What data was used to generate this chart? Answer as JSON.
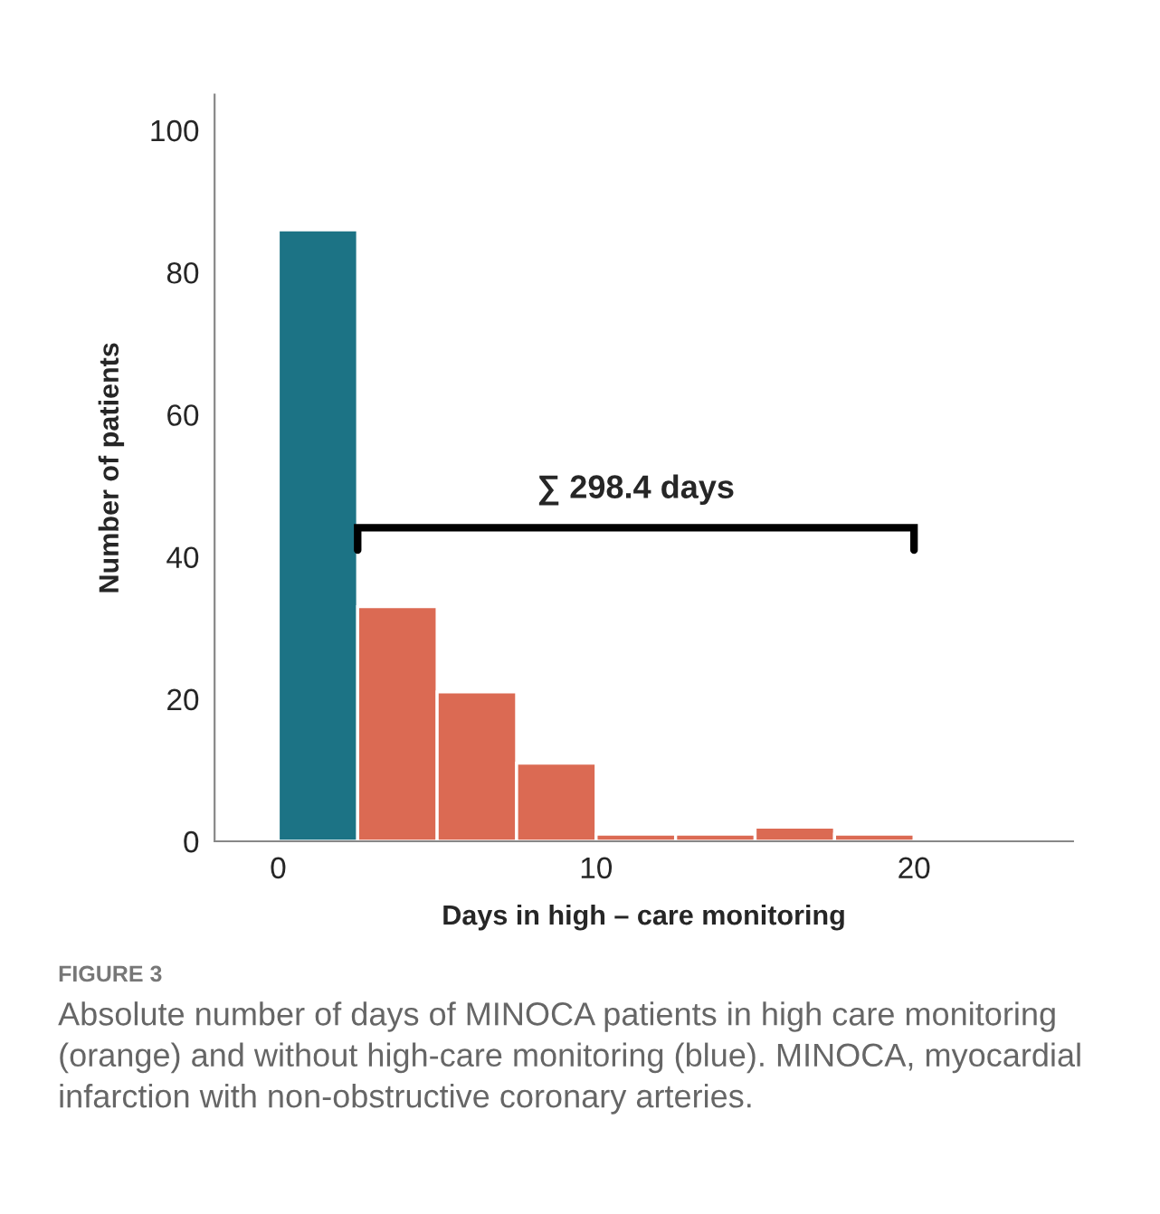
{
  "chart_data": {
    "type": "histogram",
    "xlabel": "Days in high – care monitoring",
    "ylabel": "Number of patients",
    "bins": [
      0,
      2.5,
      5,
      7.5,
      10,
      12.5,
      15,
      17.5,
      20
    ],
    "values": [
      86,
      33,
      21,
      11,
      1,
      1,
      2,
      1
    ],
    "colors": [
      "#1c7385",
      "#db6a53",
      "#db6a53",
      "#db6a53",
      "#db6a53",
      "#db6a53",
      "#db6a53",
      "#db6a53"
    ],
    "xlim": [
      -2,
      25
    ],
    "xticks": [
      0,
      10,
      20
    ],
    "ylim": [
      0,
      105
    ],
    "yticks": [
      0,
      20,
      40,
      60,
      80,
      100
    ],
    "grid": false,
    "legend": false,
    "annotations": [
      "∑ 298.4 days",
      "FIGURE 3",
      "Absolute number of days of MINOCA patients in high care monitoring (orange) and without high-care monitoring (blue). MINOCA, myocardial infarction with non-obstructive coronary arteries."
    ]
  }
}
